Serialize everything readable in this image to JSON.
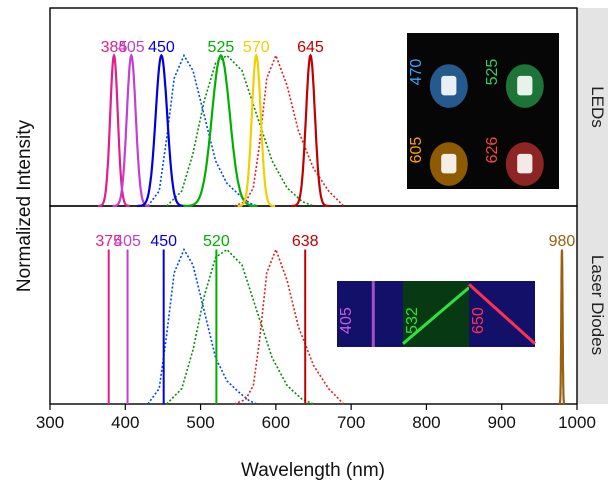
{
  "chart_data": {
    "type": "line",
    "xlabel": "Wavelength (nm)",
    "ylabel": "Normalized Intensity",
    "xlim": [
      300,
      1000
    ],
    "x_ticks": [
      300,
      400,
      500,
      600,
      700,
      800,
      900,
      1000
    ],
    "grid": false,
    "panels": [
      {
        "label": "LEDs",
        "emitters": [
          {
            "name": "385",
            "peak": 385,
            "fwhm": 12,
            "color": "#e0208a"
          },
          {
            "name": "405",
            "peak": 408,
            "fwhm": 14,
            "color": "#c040d0"
          },
          {
            "name": "450",
            "peak": 448,
            "fwhm": 18,
            "color": "#0000e0"
          },
          {
            "name": "525",
            "peak": 527,
            "fwhm": 28,
            "color": "#00b000"
          },
          {
            "name": "570",
            "peak": 574,
            "fwhm": 14,
            "color": "#f0d000"
          },
          {
            "name": "645",
            "peak": 646,
            "fwhm": 14,
            "color": "#c00000"
          }
        ],
        "photos": [
          {
            "label": "470",
            "color": "#3fa0ff"
          },
          {
            "label": "525",
            "color": "#30d060"
          },
          {
            "label": "605",
            "color": "#ffa000"
          },
          {
            "label": "626",
            "color": "#ff4040"
          }
        ]
      },
      {
        "label": "Laser Diodes",
        "emitters": [
          {
            "name": "375",
            "peak": 378,
            "fwhm": 0,
            "color": "#e0208a"
          },
          {
            "name": "405",
            "peak": 403,
            "fwhm": 0,
            "color": "#c040d0"
          },
          {
            "name": "450",
            "peak": 451,
            "fwhm": 0,
            "color": "#0000e0"
          },
          {
            "name": "520",
            "peak": 521,
            "fwhm": 0,
            "color": "#00b000"
          },
          {
            "name": "638",
            "peak": 639,
            "fwhm": 0,
            "color": "#c00000"
          },
          {
            "name": "980",
            "peak": 980,
            "fwhm": 2,
            "color": "#9a6010"
          }
        ],
        "photos": [
          {
            "label": "405",
            "color": "#c060e0"
          },
          {
            "label": "532",
            "color": "#30e040"
          },
          {
            "label": "650",
            "color": "#ff3050"
          }
        ]
      }
    ],
    "reference_curves": [
      {
        "name": "blue-dotted",
        "color": "#0044ff",
        "points": [
          [
            430,
            0
          ],
          [
            445,
            0.1
          ],
          [
            455,
            0.45
          ],
          [
            465,
            0.85
          ],
          [
            478,
            1.0
          ],
          [
            490,
            0.9
          ],
          [
            505,
            0.6
          ],
          [
            520,
            0.3
          ],
          [
            535,
            0.15
          ],
          [
            550,
            0.08
          ],
          [
            565,
            0.02
          ],
          [
            575,
            0
          ]
        ]
      },
      {
        "name": "green-dotted",
        "color": "#009000",
        "points": [
          [
            455,
            0
          ],
          [
            475,
            0.1
          ],
          [
            490,
            0.35
          ],
          [
            505,
            0.7
          ],
          [
            520,
            0.95
          ],
          [
            535,
            1.0
          ],
          [
            555,
            0.9
          ],
          [
            575,
            0.6
          ],
          [
            595,
            0.3
          ],
          [
            615,
            0.12
          ],
          [
            635,
            0.03
          ],
          [
            650,
            0
          ]
        ]
      },
      {
        "name": "red-dotted",
        "color": "#e02020",
        "points": [
          [
            545,
            0
          ],
          [
            560,
            0.03
          ],
          [
            570,
            0.12
          ],
          [
            578,
            0.4
          ],
          [
            588,
            0.85
          ],
          [
            600,
            1.0
          ],
          [
            615,
            0.8
          ],
          [
            630,
            0.5
          ],
          [
            650,
            0.25
          ],
          [
            670,
            0.1
          ],
          [
            690,
            0
          ]
        ]
      }
    ]
  }
}
